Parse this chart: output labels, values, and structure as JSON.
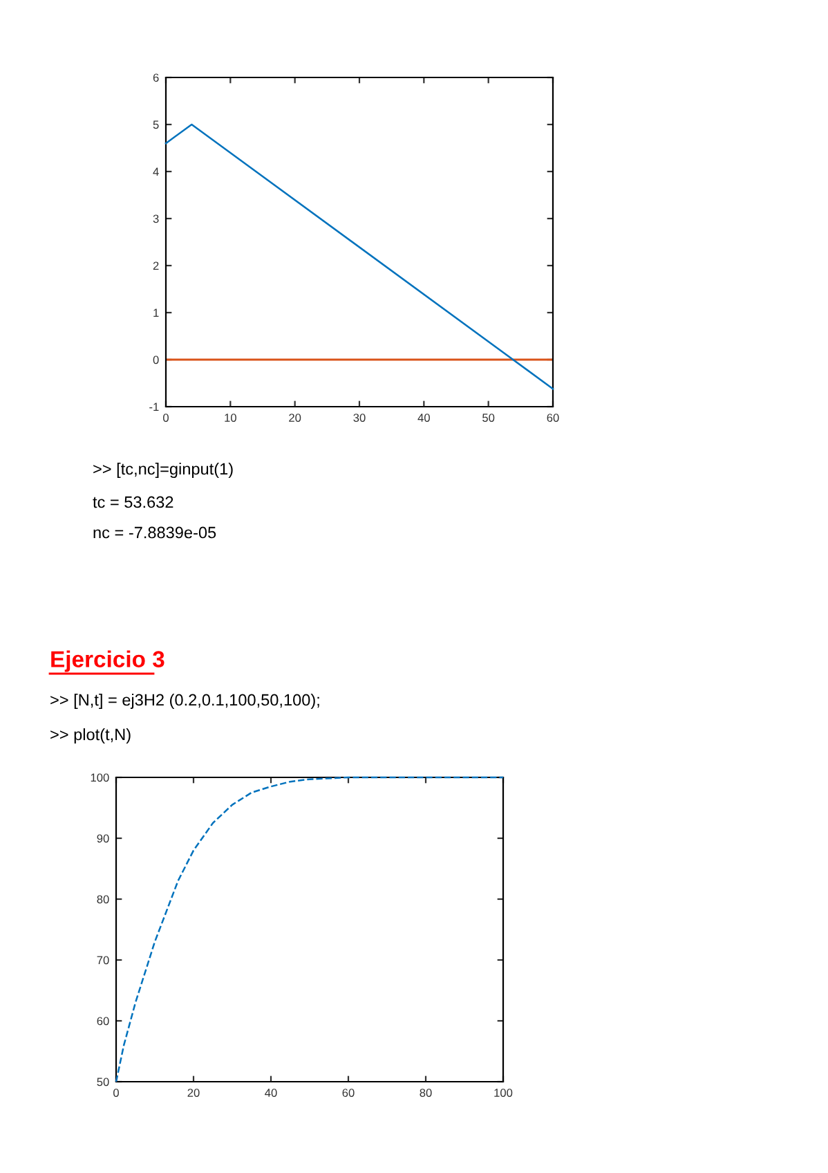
{
  "chart_data": [
    {
      "type": "line",
      "x": [
        0,
        4,
        60
      ],
      "series": [
        {
          "color": "#0072bd",
          "values": [
            4.6,
            5,
            -0.62
          ]
        }
      ],
      "ref_lines": [
        {
          "axis": "y",
          "value": 0,
          "color": "#d95319"
        }
      ],
      "xlim": [
        0,
        60
      ],
      "xticks": [
        0,
        10,
        20,
        30,
        40,
        50,
        60
      ],
      "ylim": [
        -1,
        6
      ],
      "yticks": [
        -1,
        0,
        1,
        2,
        3,
        4,
        5,
        6
      ],
      "grid": false,
      "line_style": "solid",
      "annotations": [
        ">> [tc,nc]=ginput(1)",
        "tc = 53.632",
        "nc = -7.8839e-05"
      ]
    },
    {
      "type": "line",
      "title": "Ejercicio 3",
      "x": [
        0,
        2,
        5,
        8,
        10,
        13,
        16,
        20,
        25,
        30,
        35,
        40,
        45,
        50,
        60,
        100
      ],
      "series": [
        {
          "color": "#0072bd",
          "values": [
            50,
            56,
            63,
            69,
            73,
            78,
            83,
            88,
            92.5,
            95.5,
            97.5,
            98.5,
            99.3,
            99.7,
            100,
            100
          ]
        }
      ],
      "xlim": [
        0,
        100
      ],
      "xticks": [
        0,
        20,
        40,
        60,
        80,
        100
      ],
      "ylim": [
        50,
        100
      ],
      "yticks": [
        50,
        60,
        70,
        80,
        90,
        100
      ],
      "grid": false,
      "line_style": "dashed",
      "annotations": [
        ">> [N,t] = ej3H2 (0.2,0.1,100,50,100);",
        ">> plot(t,N)"
      ]
    }
  ]
}
